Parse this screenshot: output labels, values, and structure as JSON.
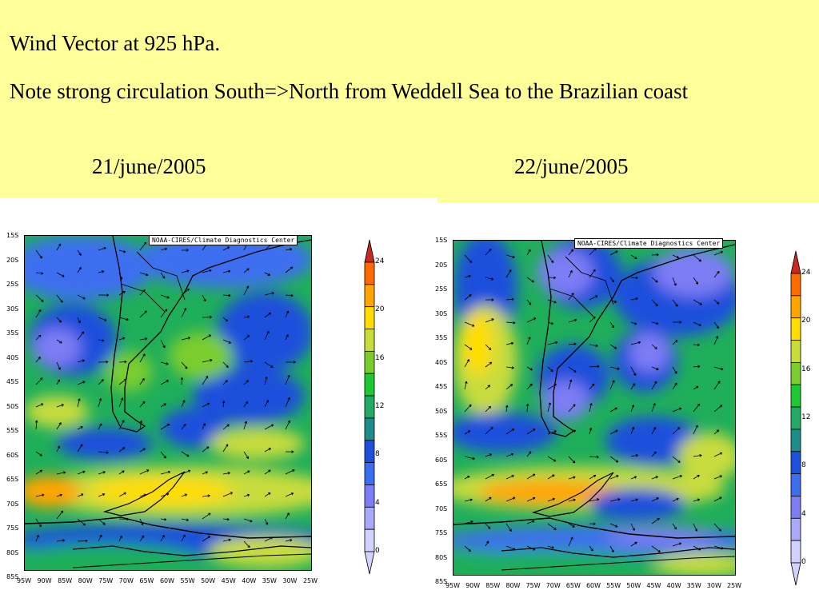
{
  "slide": {
    "title": "Wind Vector at 925 hPa.",
    "note": "Note strong circulation South=>North from Weddell Sea to the Brazilian coast"
  },
  "maps": [
    {
      "date": "21/june/2005",
      "credit": "NOAA-CIRES/Climate Diagnostics Center"
    },
    {
      "date": "22/june/2005",
      "credit": "NOAA-CIRES/Climate Diagnostics Center"
    }
  ],
  "axes": {
    "lat_labels": [
      "15S",
      "20S",
      "25S",
      "30S",
      "35S",
      "40S",
      "45S",
      "50S",
      "55S",
      "60S",
      "65S",
      "70S",
      "75S",
      "80S",
      "85S"
    ],
    "lon_labels": [
      "95W",
      "90W",
      "85W",
      "80W",
      "75W",
      "70W",
      "65W",
      "60W",
      "55W",
      "50W",
      "45W",
      "40W",
      "35W",
      "30W",
      "25W"
    ]
  },
  "colorbar": {
    "tick_labels": [
      "24",
      "20",
      "16",
      "12",
      "8",
      "4",
      "0"
    ],
    "colors": [
      "#c8281e",
      "#ff6a00",
      "#ffa500",
      "#ffdd00",
      "#c8dc3c",
      "#7bcd2e",
      "#1ec832",
      "#22aa66",
      "#1f8c8c",
      "#1e50dc",
      "#3c6ef0",
      "#7d7df5",
      "#aaaafa",
      "#d2d2ff"
    ]
  },
  "style": {
    "banner_color": "#ffff99"
  }
}
